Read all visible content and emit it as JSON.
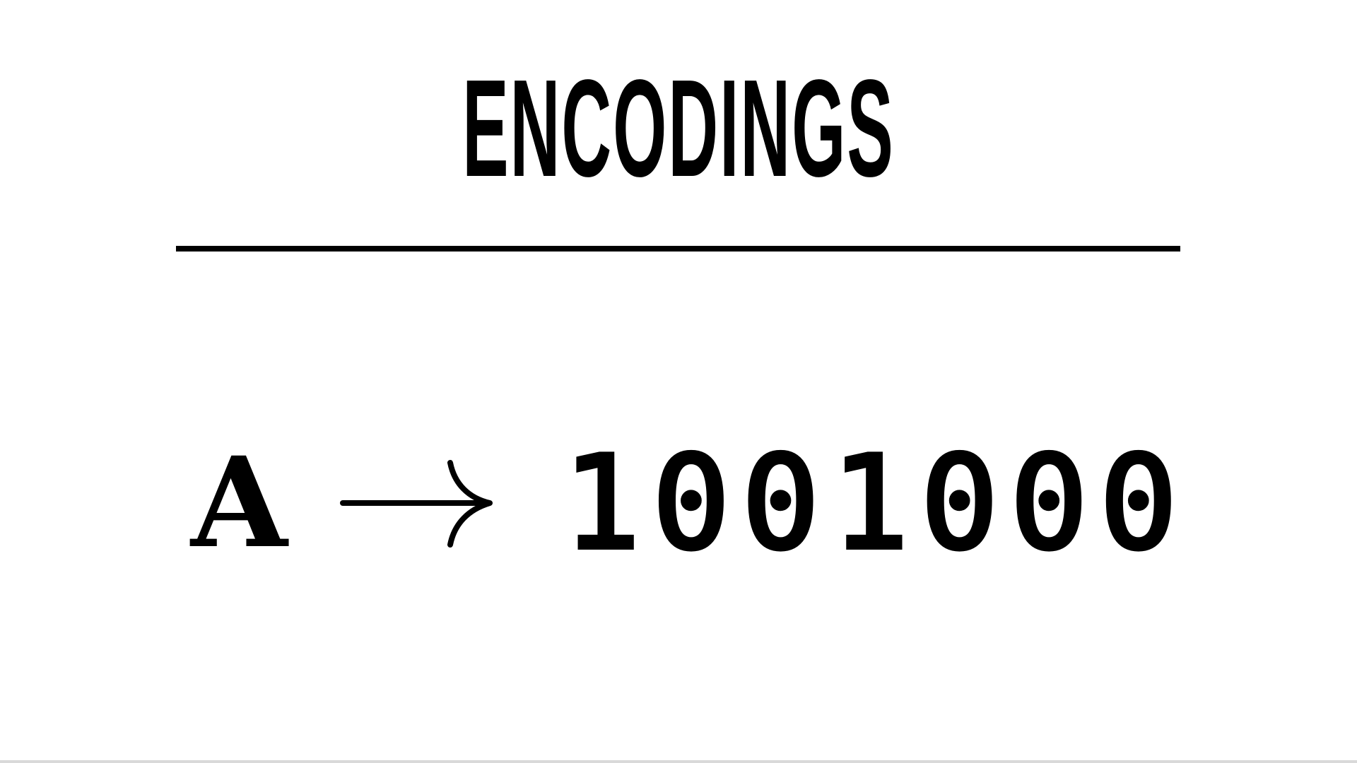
{
  "slide": {
    "title": "ENCODINGS",
    "equation": {
      "character": "A",
      "arrow_icon": "long-right-arrow-icon",
      "binary": "1001000"
    }
  },
  "colors": {
    "background": "#ffffff",
    "text": "#000000",
    "rule": "#000000"
  }
}
